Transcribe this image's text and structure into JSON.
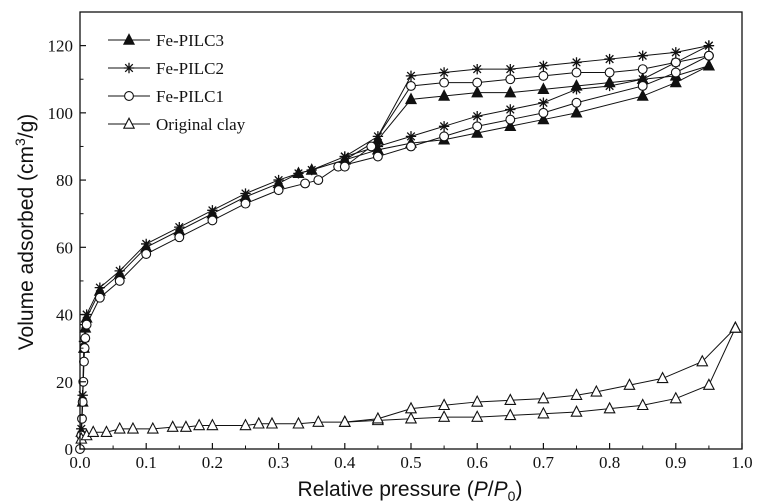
{
  "chart_data": {
    "type": "line",
    "xlabel": "Relative pressure (P/P0)",
    "ylabel": "Volume adsorbed (cm3/g)",
    "xlim": [
      0.0,
      1.0
    ],
    "ylim": [
      0,
      130
    ],
    "x_ticks": [
      "0.0",
      "0.1",
      "0.2",
      "0.3",
      "0.4",
      "0.5",
      "0.6",
      "0.7",
      "0.8",
      "0.9",
      "1.0"
    ],
    "y_ticks": [
      "0",
      "20",
      "40",
      "60",
      "80",
      "100",
      "120"
    ],
    "grid": false,
    "legend_position": "top-left",
    "series": [
      {
        "name": "Fe-PILC3",
        "marker": "filled-triangle",
        "adsorption": [
          [
            0.002,
            5
          ],
          [
            0.004,
            14
          ],
          [
            0.006,
            30
          ],
          [
            0.008,
            36
          ],
          [
            0.01,
            39
          ],
          [
            0.03,
            47
          ],
          [
            0.06,
            52
          ],
          [
            0.1,
            60
          ],
          [
            0.15,
            65
          ],
          [
            0.2,
            70
          ],
          [
            0.25,
            75
          ],
          [
            0.3,
            79
          ],
          [
            0.33,
            82
          ],
          [
            0.35,
            83
          ],
          [
            0.4,
            86
          ],
          [
            0.45,
            89
          ],
          [
            0.5,
            91
          ],
          [
            0.55,
            92
          ],
          [
            0.6,
            94
          ],
          [
            0.65,
            96
          ],
          [
            0.7,
            98
          ],
          [
            0.75,
            100
          ],
          [
            0.85,
            105
          ],
          [
            0.9,
            109
          ],
          [
            0.95,
            114
          ]
        ],
        "desorption": [
          [
            0.95,
            114
          ],
          [
            0.9,
            111
          ],
          [
            0.85,
            110
          ],
          [
            0.8,
            109
          ],
          [
            0.75,
            108
          ],
          [
            0.7,
            107
          ],
          [
            0.65,
            106
          ],
          [
            0.6,
            106
          ],
          [
            0.55,
            105
          ],
          [
            0.5,
            104
          ],
          [
            0.45,
            92
          ],
          [
            0.4,
            86
          ]
        ]
      },
      {
        "name": "Fe-PILC2",
        "marker": "asterisk",
        "adsorption": [
          [
            0.002,
            6
          ],
          [
            0.004,
            16
          ],
          [
            0.006,
            32
          ],
          [
            0.008,
            37
          ],
          [
            0.01,
            40
          ],
          [
            0.03,
            48
          ],
          [
            0.06,
            53
          ],
          [
            0.1,
            61
          ],
          [
            0.15,
            66
          ],
          [
            0.2,
            71
          ],
          [
            0.25,
            76
          ],
          [
            0.3,
            80
          ],
          [
            0.33,
            82
          ],
          [
            0.35,
            83
          ],
          [
            0.4,
            87
          ],
          [
            0.45,
            90
          ],
          [
            0.5,
            93
          ],
          [
            0.55,
            96
          ],
          [
            0.6,
            99
          ],
          [
            0.65,
            101
          ],
          [
            0.7,
            103
          ],
          [
            0.75,
            107
          ],
          [
            0.8,
            108
          ],
          [
            0.85,
            110
          ],
          [
            0.9,
            115
          ],
          [
            0.95,
            120
          ]
        ],
        "desorption": [
          [
            0.95,
            120
          ],
          [
            0.9,
            118
          ],
          [
            0.85,
            117
          ],
          [
            0.8,
            116
          ],
          [
            0.75,
            115
          ],
          [
            0.7,
            114
          ],
          [
            0.65,
            113
          ],
          [
            0.6,
            113
          ],
          [
            0.55,
            112
          ],
          [
            0.5,
            111
          ],
          [
            0.45,
            93
          ],
          [
            0.4,
            87
          ]
        ]
      },
      {
        "name": "Fe-PILC1",
        "marker": "open-circle",
        "adsorption": [
          [
            0.0,
            0
          ],
          [
            0.002,
            4
          ],
          [
            0.003,
            9
          ],
          [
            0.004,
            14
          ],
          [
            0.005,
            20
          ],
          [
            0.006,
            26
          ],
          [
            0.007,
            30
          ],
          [
            0.008,
            33
          ],
          [
            0.01,
            37
          ],
          [
            0.03,
            45
          ],
          [
            0.06,
            50
          ],
          [
            0.1,
            58
          ],
          [
            0.15,
            63
          ],
          [
            0.2,
            68
          ],
          [
            0.25,
            73
          ],
          [
            0.3,
            77
          ],
          [
            0.34,
            79
          ],
          [
            0.36,
            80
          ],
          [
            0.39,
            84
          ],
          [
            0.45,
            87
          ],
          [
            0.5,
            90
          ],
          [
            0.55,
            93
          ],
          [
            0.6,
            96
          ],
          [
            0.65,
            98
          ],
          [
            0.7,
            100
          ],
          [
            0.75,
            103
          ],
          [
            0.85,
            108
          ],
          [
            0.9,
            112
          ],
          [
            0.95,
            117
          ]
        ],
        "desorption": [
          [
            0.95,
            117
          ],
          [
            0.9,
            115
          ],
          [
            0.85,
            113
          ],
          [
            0.8,
            112
          ],
          [
            0.75,
            112
          ],
          [
            0.7,
            111
          ],
          [
            0.65,
            110
          ],
          [
            0.6,
            109
          ],
          [
            0.55,
            109
          ],
          [
            0.5,
            108
          ],
          [
            0.44,
            90
          ],
          [
            0.4,
            84
          ]
        ]
      },
      {
        "name": "Original clay",
        "marker": "open-triangle",
        "adsorption": [
          [
            0.002,
            3
          ],
          [
            0.01,
            4
          ],
          [
            0.02,
            5
          ],
          [
            0.04,
            5
          ],
          [
            0.06,
            6
          ],
          [
            0.08,
            6
          ],
          [
            0.11,
            6
          ],
          [
            0.14,
            6.5
          ],
          [
            0.16,
            6.5
          ],
          [
            0.18,
            7
          ],
          [
            0.2,
            7
          ],
          [
            0.25,
            7
          ],
          [
            0.27,
            7.5
          ],
          [
            0.29,
            7.5
          ],
          [
            0.33,
            7.5
          ],
          [
            0.36,
            8
          ],
          [
            0.4,
            8
          ],
          [
            0.45,
            8.5
          ],
          [
            0.5,
            9
          ],
          [
            0.55,
            9.5
          ],
          [
            0.6,
            9.5
          ],
          [
            0.65,
            10
          ],
          [
            0.7,
            10.5
          ],
          [
            0.75,
            11
          ],
          [
            0.8,
            12
          ],
          [
            0.85,
            13
          ],
          [
            0.9,
            15
          ],
          [
            0.95,
            19
          ],
          [
            0.99,
            36
          ]
        ],
        "desorption": [
          [
            0.99,
            36
          ],
          [
            0.94,
            26
          ],
          [
            0.88,
            21
          ],
          [
            0.83,
            19
          ],
          [
            0.78,
            17
          ],
          [
            0.75,
            16
          ],
          [
            0.7,
            15
          ],
          [
            0.65,
            14.5
          ],
          [
            0.6,
            14
          ],
          [
            0.55,
            13
          ],
          [
            0.5,
            12
          ],
          [
            0.45,
            9
          ],
          [
            0.4,
            8
          ]
        ]
      }
    ]
  }
}
